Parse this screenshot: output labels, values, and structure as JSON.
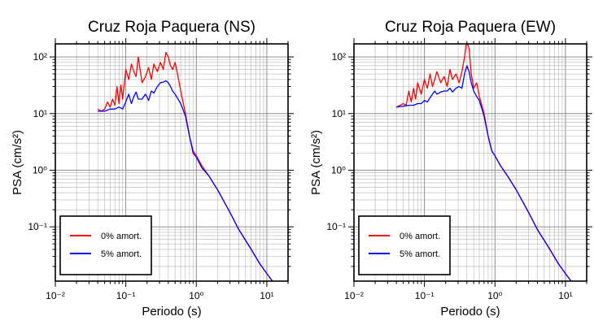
{
  "chart_data": [
    {
      "type": "line",
      "title": "Cruz Roja Paquera (NS)",
      "xlabel": "Periodo (s)",
      "ylabel": "PSA (cm/s²)",
      "xscale": "log",
      "yscale": "log",
      "xlim": [
        0.01,
        20
      ],
      "ylim": [
        0.011,
        170
      ],
      "grid": true,
      "legend_position": "bottom-left",
      "x_ticks": [
        "10⁻²",
        "10⁻¹",
        "10⁰",
        "10¹"
      ],
      "y_ticks": [
        "10⁻¹",
        "10⁰",
        "10¹",
        "10²"
      ],
      "series": [
        {
          "name": "0% amort.",
          "color": "#ff0000",
          "x": [
            0.04,
            0.045,
            0.05,
            0.055,
            0.06,
            0.065,
            0.07,
            0.075,
            0.08,
            0.085,
            0.09,
            0.1,
            0.11,
            0.12,
            0.13,
            0.14,
            0.15,
            0.17,
            0.19,
            0.21,
            0.23,
            0.25,
            0.28,
            0.31,
            0.34,
            0.37,
            0.4,
            0.43,
            0.46,
            0.5,
            0.55,
            0.6,
            0.7,
            0.8,
            0.9,
            1.0,
            1.2,
            1.5,
            2.0,
            3.0,
            4.0,
            6.0,
            8.0,
            10.0,
            12.0
          ],
          "y": [
            12,
            11,
            12,
            16,
            13,
            18,
            14,
            30,
            15,
            32,
            18,
            60,
            40,
            75,
            55,
            45,
            100,
            35,
            45,
            65,
            40,
            75,
            55,
            80,
            60,
            120,
            100,
            70,
            60,
            80,
            45,
            25,
            10,
            4.0,
            2.2,
            1.8,
            1.2,
            0.8,
            0.45,
            0.18,
            0.09,
            0.04,
            0.022,
            0.015,
            0.011
          ]
        },
        {
          "name": "5% amort.",
          "color": "#0000ff",
          "x": [
            0.04,
            0.05,
            0.06,
            0.07,
            0.08,
            0.09,
            0.1,
            0.11,
            0.12,
            0.13,
            0.14,
            0.15,
            0.17,
            0.19,
            0.21,
            0.23,
            0.25,
            0.28,
            0.31,
            0.34,
            0.37,
            0.4,
            0.43,
            0.46,
            0.5,
            0.55,
            0.6,
            0.7,
            0.8,
            0.9,
            1.0,
            1.2,
            1.5,
            2.0,
            3.0,
            4.0,
            6.0,
            8.0,
            10.0,
            12.0
          ],
          "y": [
            11,
            11,
            12,
            12,
            13,
            12,
            16,
            22,
            15,
            20,
            24,
            18,
            18,
            22,
            17,
            25,
            23,
            30,
            35,
            36,
            38,
            35,
            30,
            25,
            22,
            18,
            15,
            9,
            4.0,
            2.0,
            1.7,
            1.1,
            0.8,
            0.45,
            0.18,
            0.09,
            0.04,
            0.022,
            0.015,
            0.011
          ]
        }
      ]
    },
    {
      "type": "line",
      "title": "Cruz Roja Paquera (EW)",
      "xlabel": "Periodo (s)",
      "ylabel": "PSA (cm/s²)",
      "xscale": "log",
      "yscale": "log",
      "xlim": [
        0.01,
        20
      ],
      "ylim": [
        0.011,
        170
      ],
      "grid": true,
      "legend_position": "bottom-left",
      "x_ticks": [
        "10⁻²",
        "10⁻¹",
        "10⁰",
        "10¹"
      ],
      "y_ticks": [
        "10⁻¹",
        "10⁰",
        "10¹",
        "10²"
      ],
      "series": [
        {
          "name": "0% amort.",
          "color": "#ff0000",
          "x": [
            0.04,
            0.045,
            0.05,
            0.055,
            0.06,
            0.065,
            0.07,
            0.075,
            0.08,
            0.09,
            0.1,
            0.11,
            0.12,
            0.13,
            0.14,
            0.15,
            0.17,
            0.19,
            0.21,
            0.23,
            0.25,
            0.28,
            0.31,
            0.34,
            0.37,
            0.39,
            0.41,
            0.43,
            0.46,
            0.5,
            0.55,
            0.6,
            0.7,
            0.8,
            0.9,
            1.0,
            1.2,
            1.5,
            2.0,
            3.0,
            4.0,
            6.0,
            8.0,
            10.0,
            12.0,
            14.0
          ],
          "y": [
            13,
            14,
            15,
            14,
            25,
            16,
            28,
            18,
            35,
            22,
            40,
            28,
            50,
            30,
            40,
            55,
            35,
            45,
            30,
            60,
            40,
            50,
            35,
            55,
            100,
            160,
            170,
            140,
            50,
            28,
            35,
            20,
            10,
            4.0,
            2.2,
            1.8,
            1.2,
            0.8,
            0.45,
            0.18,
            0.09,
            0.04,
            0.022,
            0.015,
            0.011,
            0.009
          ]
        },
        {
          "name": "5% amort.",
          "color": "#0000ff",
          "x": [
            0.04,
            0.05,
            0.06,
            0.07,
            0.08,
            0.09,
            0.1,
            0.11,
            0.12,
            0.13,
            0.14,
            0.15,
            0.17,
            0.19,
            0.21,
            0.23,
            0.25,
            0.28,
            0.31,
            0.34,
            0.37,
            0.4,
            0.43,
            0.46,
            0.5,
            0.55,
            0.6,
            0.7,
            0.8,
            0.9,
            1.0,
            1.2,
            1.5,
            2.0,
            3.0,
            4.0,
            6.0,
            8.0,
            10.0,
            12.0,
            14.0
          ],
          "y": [
            13,
            13.5,
            14,
            14,
            15,
            15,
            17,
            16,
            19,
            22,
            25,
            22,
            24,
            25,
            25,
            28,
            24,
            28,
            30,
            28,
            50,
            70,
            55,
            35,
            25,
            20,
            17,
            9,
            4.0,
            2.2,
            1.8,
            1.2,
            0.8,
            0.45,
            0.18,
            0.09,
            0.04,
            0.022,
            0.015,
            0.011,
            0.009
          ]
        }
      ]
    }
  ]
}
